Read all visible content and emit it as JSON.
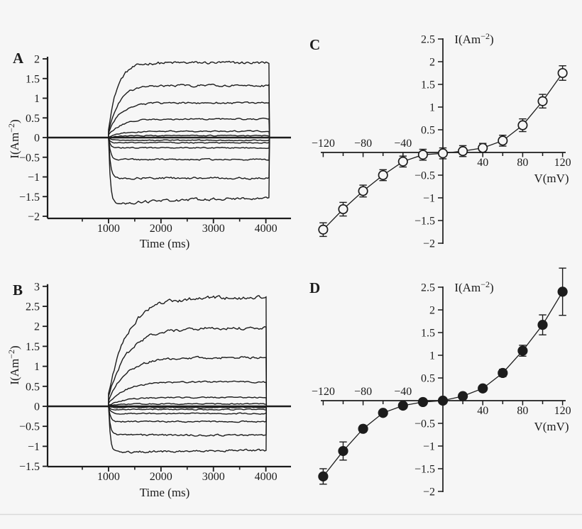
{
  "figure": {
    "background": "#f6f6f6",
    "ink": "#1c1c1c",
    "divider_color": "#d9d9d9",
    "panel_letters": [
      "A",
      "B",
      "C",
      "D"
    ]
  },
  "chart_data": [
    {
      "panel": "A",
      "type": "line",
      "variant": "voltage-clamp-current-traces",
      "xlabel": "Time (ms)",
      "ylabel": {
        "base": "I(Am",
        "sup": "−2",
        "end": ")"
      },
      "xlim": [
        0,
        4500
      ],
      "ylim": [
        -2,
        2
      ],
      "xticks_labeled": [
        1000,
        2000,
        3000,
        4000
      ],
      "xticks_minor": [
        500,
        1500,
        2500,
        3500
      ],
      "yticks": [
        2,
        1.5,
        1,
        0.5,
        0,
        -0.5,
        -1,
        -1.5,
        -2
      ],
      "grid": false,
      "pulse_start_ms": 1000,
      "pulse_end_ms": 4070,
      "traces": {
        "steady_levels_Am2": [
          1.9,
          1.32,
          0.88,
          0.47,
          0.16,
          0.05,
          -0.07,
          -0.13,
          -0.26,
          -0.56,
          -1.03,
          -1.68
        ],
        "rise_tau_ms": [
          175,
          195,
          215,
          245,
          270,
          220,
          35,
          35,
          35,
          35,
          35,
          35
        ],
        "relax_drift_Am2": [
          0,
          0,
          0,
          0,
          0,
          0,
          0,
          0,
          0,
          0,
          0,
          0.17
        ]
      }
    },
    {
      "panel": "B",
      "type": "line",
      "variant": "voltage-clamp-current-traces",
      "xlabel": "Time (ms)",
      "ylabel": {
        "base": "I(Am",
        "sup": "−2",
        "end": ")"
      },
      "xlim": [
        0,
        4500
      ],
      "ylim": [
        -1.5,
        3
      ],
      "xticks_labeled": [
        1000,
        2000,
        3000,
        4000
      ],
      "xticks_minor": [
        500,
        1500,
        2500,
        3500
      ],
      "yticks": [
        3,
        2.5,
        2,
        1.5,
        1,
        0.5,
        0,
        -0.5,
        -1,
        -1.5
      ],
      "grid": false,
      "pulse_start_ms": 1000,
      "pulse_end_ms": 4010,
      "traces": {
        "steady_levels_Am2": [
          2.72,
          1.95,
          1.22,
          0.61,
          0.22,
          0.06,
          -0.03,
          -0.08,
          -0.18,
          -0.38,
          -0.72,
          -1.15
        ],
        "rise_tau_ms": [
          370,
          360,
          345,
          330,
          280,
          200,
          35,
          35,
          35,
          35,
          35,
          35
        ],
        "relax_drift_Am2": [
          0,
          0,
          0,
          0,
          0,
          0,
          0,
          0,
          0,
          0,
          0,
          0.06
        ]
      }
    },
    {
      "panel": "C",
      "type": "scatter",
      "variant": "current-voltage-relation",
      "marker": "open-circle",
      "xlabel": "V(mV)",
      "ylabel": {
        "base": "I(Am",
        "sup": "−2",
        "end": ")"
      },
      "xlim": [
        -130,
        130
      ],
      "ylim": [
        -2,
        2.5
      ],
      "x_mV": [
        -120,
        -100,
        -80,
        -60,
        -40,
        -20,
        0,
        20,
        40,
        60,
        80,
        100,
        120
      ],
      "I_Am2": [
        -1.7,
        -1.25,
        -0.85,
        -0.5,
        -0.2,
        -0.05,
        -0.02,
        0.03,
        0.1,
        0.26,
        0.6,
        1.13,
        1.75
      ],
      "err_Am2": [
        0.15,
        0.15,
        0.13,
        0.12,
        0.12,
        0.12,
        0.12,
        0.12,
        0.1,
        0.12,
        0.14,
        0.15,
        0.16
      ],
      "xticks_labeled": [
        -120,
        -80,
        -40,
        40,
        80,
        120
      ],
      "xticks_all": [
        -120,
        -100,
        -80,
        -60,
        -40,
        -20,
        20,
        40,
        60,
        80,
        100,
        120
      ],
      "yticks": [
        2.5,
        2,
        1.5,
        1,
        0.5,
        -0.5,
        -1,
        -1.5,
        -2
      ],
      "grid": false,
      "legend": null
    },
    {
      "panel": "D",
      "type": "scatter",
      "variant": "current-voltage-relation",
      "marker": "filled-circle",
      "xlabel": "V(mV)",
      "ylabel": {
        "base": "I(Am",
        "sup": "−2",
        "end": ")"
      },
      "xlim": [
        -130,
        130
      ],
      "ylim": [
        -2,
        2.5
      ],
      "x_mV": [
        -120,
        -100,
        -80,
        -60,
        -40,
        -20,
        0,
        20,
        40,
        60,
        80,
        100,
        120
      ],
      "I_Am2": [
        -1.67,
        -1.11,
        -0.62,
        -0.27,
        -0.11,
        -0.03,
        0,
        0.1,
        0.27,
        0.61,
        1.1,
        1.67,
        2.4
      ],
      "err_Am2": [
        0.17,
        0.2,
        0.07,
        0.06,
        0.05,
        0.04,
        0.04,
        0.05,
        0.06,
        0.08,
        0.12,
        0.22,
        0.52
      ],
      "xticks_labeled": [
        -120,
        -80,
        -40,
        40,
        80,
        120
      ],
      "xticks_all": [
        -120,
        -100,
        -80,
        -60,
        -40,
        -20,
        20,
        40,
        60,
        80,
        100,
        120
      ],
      "yticks": [
        2.5,
        2,
        1.5,
        1,
        0.5,
        -0.5,
        -1,
        -1.5,
        -2
      ],
      "grid": false,
      "legend": null
    }
  ]
}
